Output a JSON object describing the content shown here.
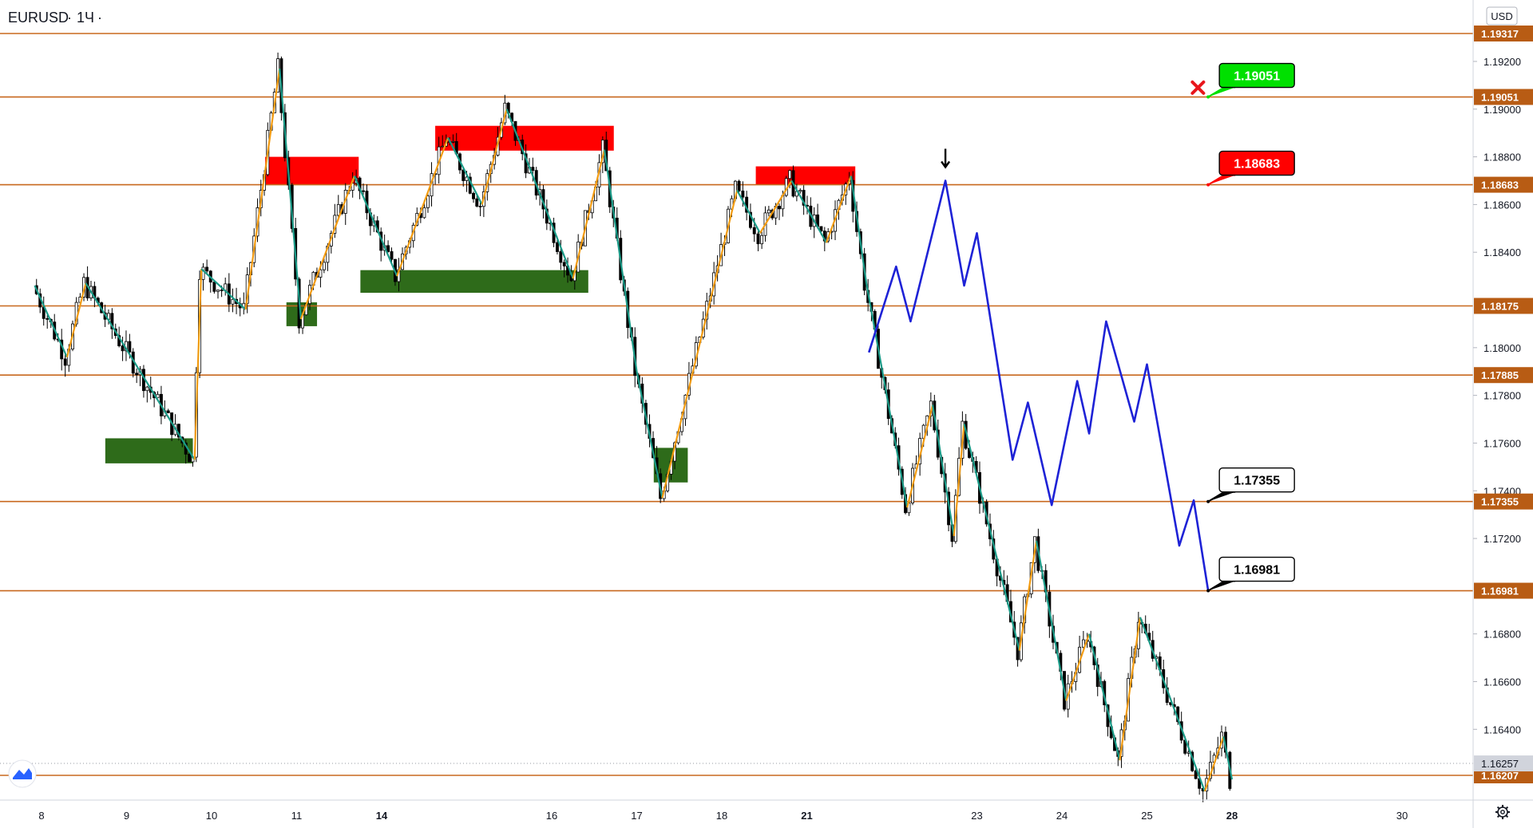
{
  "header": {
    "symbol": "EURUSD",
    "separator": "·",
    "timeframe": "1Ч",
    "suffix": "·"
  },
  "currency": "USD",
  "logo": "tradingview-logo-icon",
  "settings_icon": "gear-icon",
  "colors": {
    "level_line": "#c8681e",
    "level_label_bg": "#b85c14",
    "zigzag_up": "#f39c12",
    "zigzag_down": "#1a9a87",
    "forecast": "#1e22d6",
    "supply_zone": "#ff0000",
    "demand_zone": "#2e6b1a",
    "candle": "#000000",
    "last_price_bg": "#d1d4dc",
    "target_green": "#00e000",
    "target_red": "#ff0000",
    "target_black": "#000000"
  },
  "chart_data": {
    "type": "candlestick",
    "symbol": "EURUSD",
    "interval": "1h",
    "price_scale": {
      "currency": "USD",
      "ylim": [
        1.1596,
        1.1965
      ]
    },
    "y_ticks": [
      "1.19200",
      "1.19000",
      "1.18800",
      "1.18600",
      "1.18400",
      "1.18000",
      "1.17800",
      "1.17600",
      "1.17400",
      "1.17200",
      "1.16800",
      "1.16600",
      "1.16400"
    ],
    "x_ticks": [
      {
        "label": "8",
        "x": 0.0
      },
      {
        "label": "9",
        "x": 1.0
      },
      {
        "label": "10",
        "x": 2.0
      },
      {
        "label": "11",
        "x": 3.0
      },
      {
        "label": "14",
        "x": 4.0,
        "bold": true
      },
      {
        "label": "16",
        "x": 6.0
      },
      {
        "label": "17",
        "x": 7.0
      },
      {
        "label": "18",
        "x": 8.0
      },
      {
        "label": "21",
        "x": 9.0,
        "bold": true
      },
      {
        "label": "23",
        "x": 11.0
      },
      {
        "label": "24",
        "x": 12.0
      },
      {
        "label": "25",
        "x": 13.0
      },
      {
        "label": "28",
        "x": 14.0,
        "bold": true
      },
      {
        "label": "30",
        "x": 16.0
      }
    ],
    "levels": [
      {
        "label": "1.19317",
        "value": 1.19317
      },
      {
        "label": "1.19051",
        "value": 1.19051
      },
      {
        "label": "1.18683",
        "value": 1.18683
      },
      {
        "label": "1.18175",
        "value": 1.18175
      },
      {
        "label": "1.17885",
        "value": 1.17885
      },
      {
        "label": "1.17355",
        "value": 1.17355
      },
      {
        "label": "1.16981",
        "value": 1.16981
      },
      {
        "label": "1.16207",
        "value": 1.16207
      }
    ],
    "last_price": {
      "label": "1.16257",
      "value": 1.16257
    },
    "supply_zones": [
      {
        "x0": 2.63,
        "x1": 3.73,
        "y0": 1.18683,
        "y1": 1.188
      },
      {
        "x0": 4.63,
        "x1": 6.73,
        "y0": 1.18826,
        "y1": 1.1893
      },
      {
        "x0": 8.4,
        "x1": 9.57,
        "y0": 1.18683,
        "y1": 1.1876
      }
    ],
    "demand_zones": [
      {
        "x0": 0.75,
        "x1": 1.78,
        "y0": 1.17515,
        "y1": 1.1762
      },
      {
        "x0": 2.88,
        "x1": 3.24,
        "y0": 1.1809,
        "y1": 1.1819
      },
      {
        "x0": 3.75,
        "x1": 6.43,
        "y0": 1.1823,
        "y1": 1.18325
      },
      {
        "x0": 7.2,
        "x1": 7.6,
        "y0": 1.17435,
        "y1": 1.1758
      }
    ],
    "zigzag": [
      {
        "x": -0.08,
        "y": 1.1826
      },
      {
        "x": 0.3,
        "y": 1.1796
      },
      {
        "x": 0.52,
        "y": 1.1827
      },
      {
        "x": 1.8,
        "y": 1.1753
      },
      {
        "x": 1.88,
        "y": 1.1833
      },
      {
        "x": 2.4,
        "y": 1.1816
      },
      {
        "x": 2.8,
        "y": 1.1917
      },
      {
        "x": 3.05,
        "y": 1.1812
      },
      {
        "x": 3.68,
        "y": 1.1872
      },
      {
        "x": 4.18,
        "y": 1.183
      },
      {
        "x": 4.78,
        "y": 1.1888
      },
      {
        "x": 5.18,
        "y": 1.186
      },
      {
        "x": 5.47,
        "y": 1.19
      },
      {
        "x": 6.25,
        "y": 1.1829
      },
      {
        "x": 6.62,
        "y": 1.1883
      },
      {
        "x": 7.0,
        "y": 1.179
      },
      {
        "x": 7.3,
        "y": 1.1737
      },
      {
        "x": 8.18,
        "y": 1.1866
      },
      {
        "x": 8.45,
        "y": 1.1848
      },
      {
        "x": 8.82,
        "y": 1.187
      },
      {
        "x": 9.23,
        "y": 1.1844
      },
      {
        "x": 9.52,
        "y": 1.1872
      },
      {
        "x": 9.7,
        "y": 1.1827
      },
      {
        "x": 10.18,
        "y": 1.1733
      },
      {
        "x": 10.48,
        "y": 1.1776
      },
      {
        "x": 10.73,
        "y": 1.1721
      },
      {
        "x": 10.85,
        "y": 1.1768
      },
      {
        "x": 11.5,
        "y": 1.1673
      },
      {
        "x": 11.7,
        "y": 1.1719
      },
      {
        "x": 12.05,
        "y": 1.1652
      },
      {
        "x": 12.32,
        "y": 1.168
      },
      {
        "x": 12.68,
        "y": 1.1627
      },
      {
        "x": 12.92,
        "y": 1.1687
      },
      {
        "x": 13.68,
        "y": 1.1614
      },
      {
        "x": 13.9,
        "y": 1.1637
      },
      {
        "x": 14.0,
        "y": 1.1619
      }
    ],
    "forecast_path": [
      {
        "x": 9.73,
        "y": 1.1798
      },
      {
        "x": 10.05,
        "y": 1.1834
      },
      {
        "x": 10.22,
        "y": 1.1811
      },
      {
        "x": 10.63,
        "y": 1.187
      },
      {
        "x": 10.85,
        "y": 1.1826
      },
      {
        "x": 11.0,
        "y": 1.1848
      },
      {
        "x": 11.42,
        "y": 1.1753
      },
      {
        "x": 11.6,
        "y": 1.1777
      },
      {
        "x": 11.88,
        "y": 1.1734
      },
      {
        "x": 12.18,
        "y": 1.1786
      },
      {
        "x": 12.32,
        "y": 1.1764
      },
      {
        "x": 12.52,
        "y": 1.1811
      },
      {
        "x": 12.85,
        "y": 1.1769
      },
      {
        "x": 13.0,
        "y": 1.1793
      },
      {
        "x": 13.38,
        "y": 1.1717
      },
      {
        "x": 13.55,
        "y": 1.1736
      },
      {
        "x": 13.72,
        "y": 1.16981
      }
    ],
    "arrow_marker": {
      "x": 10.63,
      "y": 1.187
    },
    "callouts": [
      {
        "text": "1.19051",
        "anchor_x": 13.72,
        "anchor_y": 1.19051,
        "color": "#00e000",
        "kind": "green"
      },
      {
        "text": "1.18683",
        "anchor_x": 13.72,
        "anchor_y": 1.18683,
        "color": "#ff0000",
        "kind": "red"
      },
      {
        "text": "1.17355",
        "anchor_x": 13.72,
        "anchor_y": 1.17355,
        "color": "#000000",
        "kind": "black"
      },
      {
        "text": "1.16981",
        "anchor_x": 13.72,
        "anchor_y": 1.16981,
        "color": "#000000",
        "kind": "black"
      }
    ],
    "cancel_marker": {
      "x": 13.6,
      "y": 1.1909
    }
  }
}
